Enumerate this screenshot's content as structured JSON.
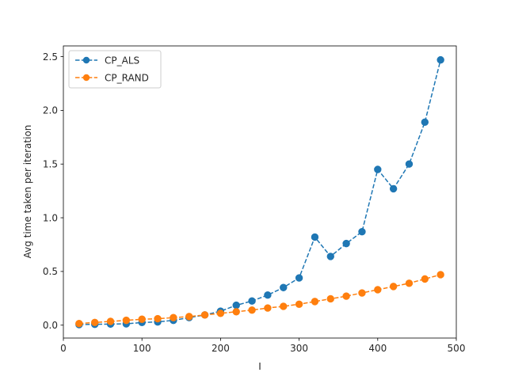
{
  "chart_data": {
    "type": "line",
    "title": "",
    "xlabel": "I",
    "ylabel": "Avg time taken per iteration",
    "xlim": [
      0,
      500
    ],
    "ylim": [
      -0.12,
      2.6
    ],
    "xticks": [
      0,
      100,
      200,
      300,
      400,
      500
    ],
    "yticks": [
      0.0,
      0.5,
      1.0,
      1.5,
      2.0,
      2.5
    ],
    "xtick_labels": [
      "0",
      "100",
      "200",
      "300",
      "400",
      "500"
    ],
    "ytick_labels": [
      "0.0",
      "0.5",
      "1.0",
      "1.5",
      "2.0",
      "2.5"
    ],
    "grid": false,
    "legend_position": "top-left",
    "x": [
      20,
      40,
      60,
      80,
      100,
      120,
      140,
      160,
      180,
      200,
      220,
      240,
      260,
      280,
      300,
      320,
      340,
      360,
      380,
      400,
      420,
      440,
      460,
      480
    ],
    "series": [
      {
        "name": "CP_ALS",
        "color": "#1f77b4",
        "style": "dashed-marker",
        "values": [
          0.005,
          0.008,
          0.01,
          0.012,
          0.025,
          0.03,
          0.045,
          0.07,
          0.095,
          0.13,
          0.185,
          0.225,
          0.28,
          0.35,
          0.44,
          0.82,
          0.64,
          0.76,
          0.87,
          1.45,
          1.27,
          1.5,
          1.89,
          2.47
        ]
      },
      {
        "name": "CP_RAND",
        "color": "#ff7f0e",
        "style": "dashed-marker",
        "values": [
          0.015,
          0.025,
          0.035,
          0.045,
          0.055,
          0.06,
          0.07,
          0.08,
          0.095,
          0.11,
          0.125,
          0.14,
          0.16,
          0.175,
          0.195,
          0.22,
          0.245,
          0.27,
          0.3,
          0.33,
          0.36,
          0.39,
          0.43,
          0.47
        ]
      }
    ]
  }
}
